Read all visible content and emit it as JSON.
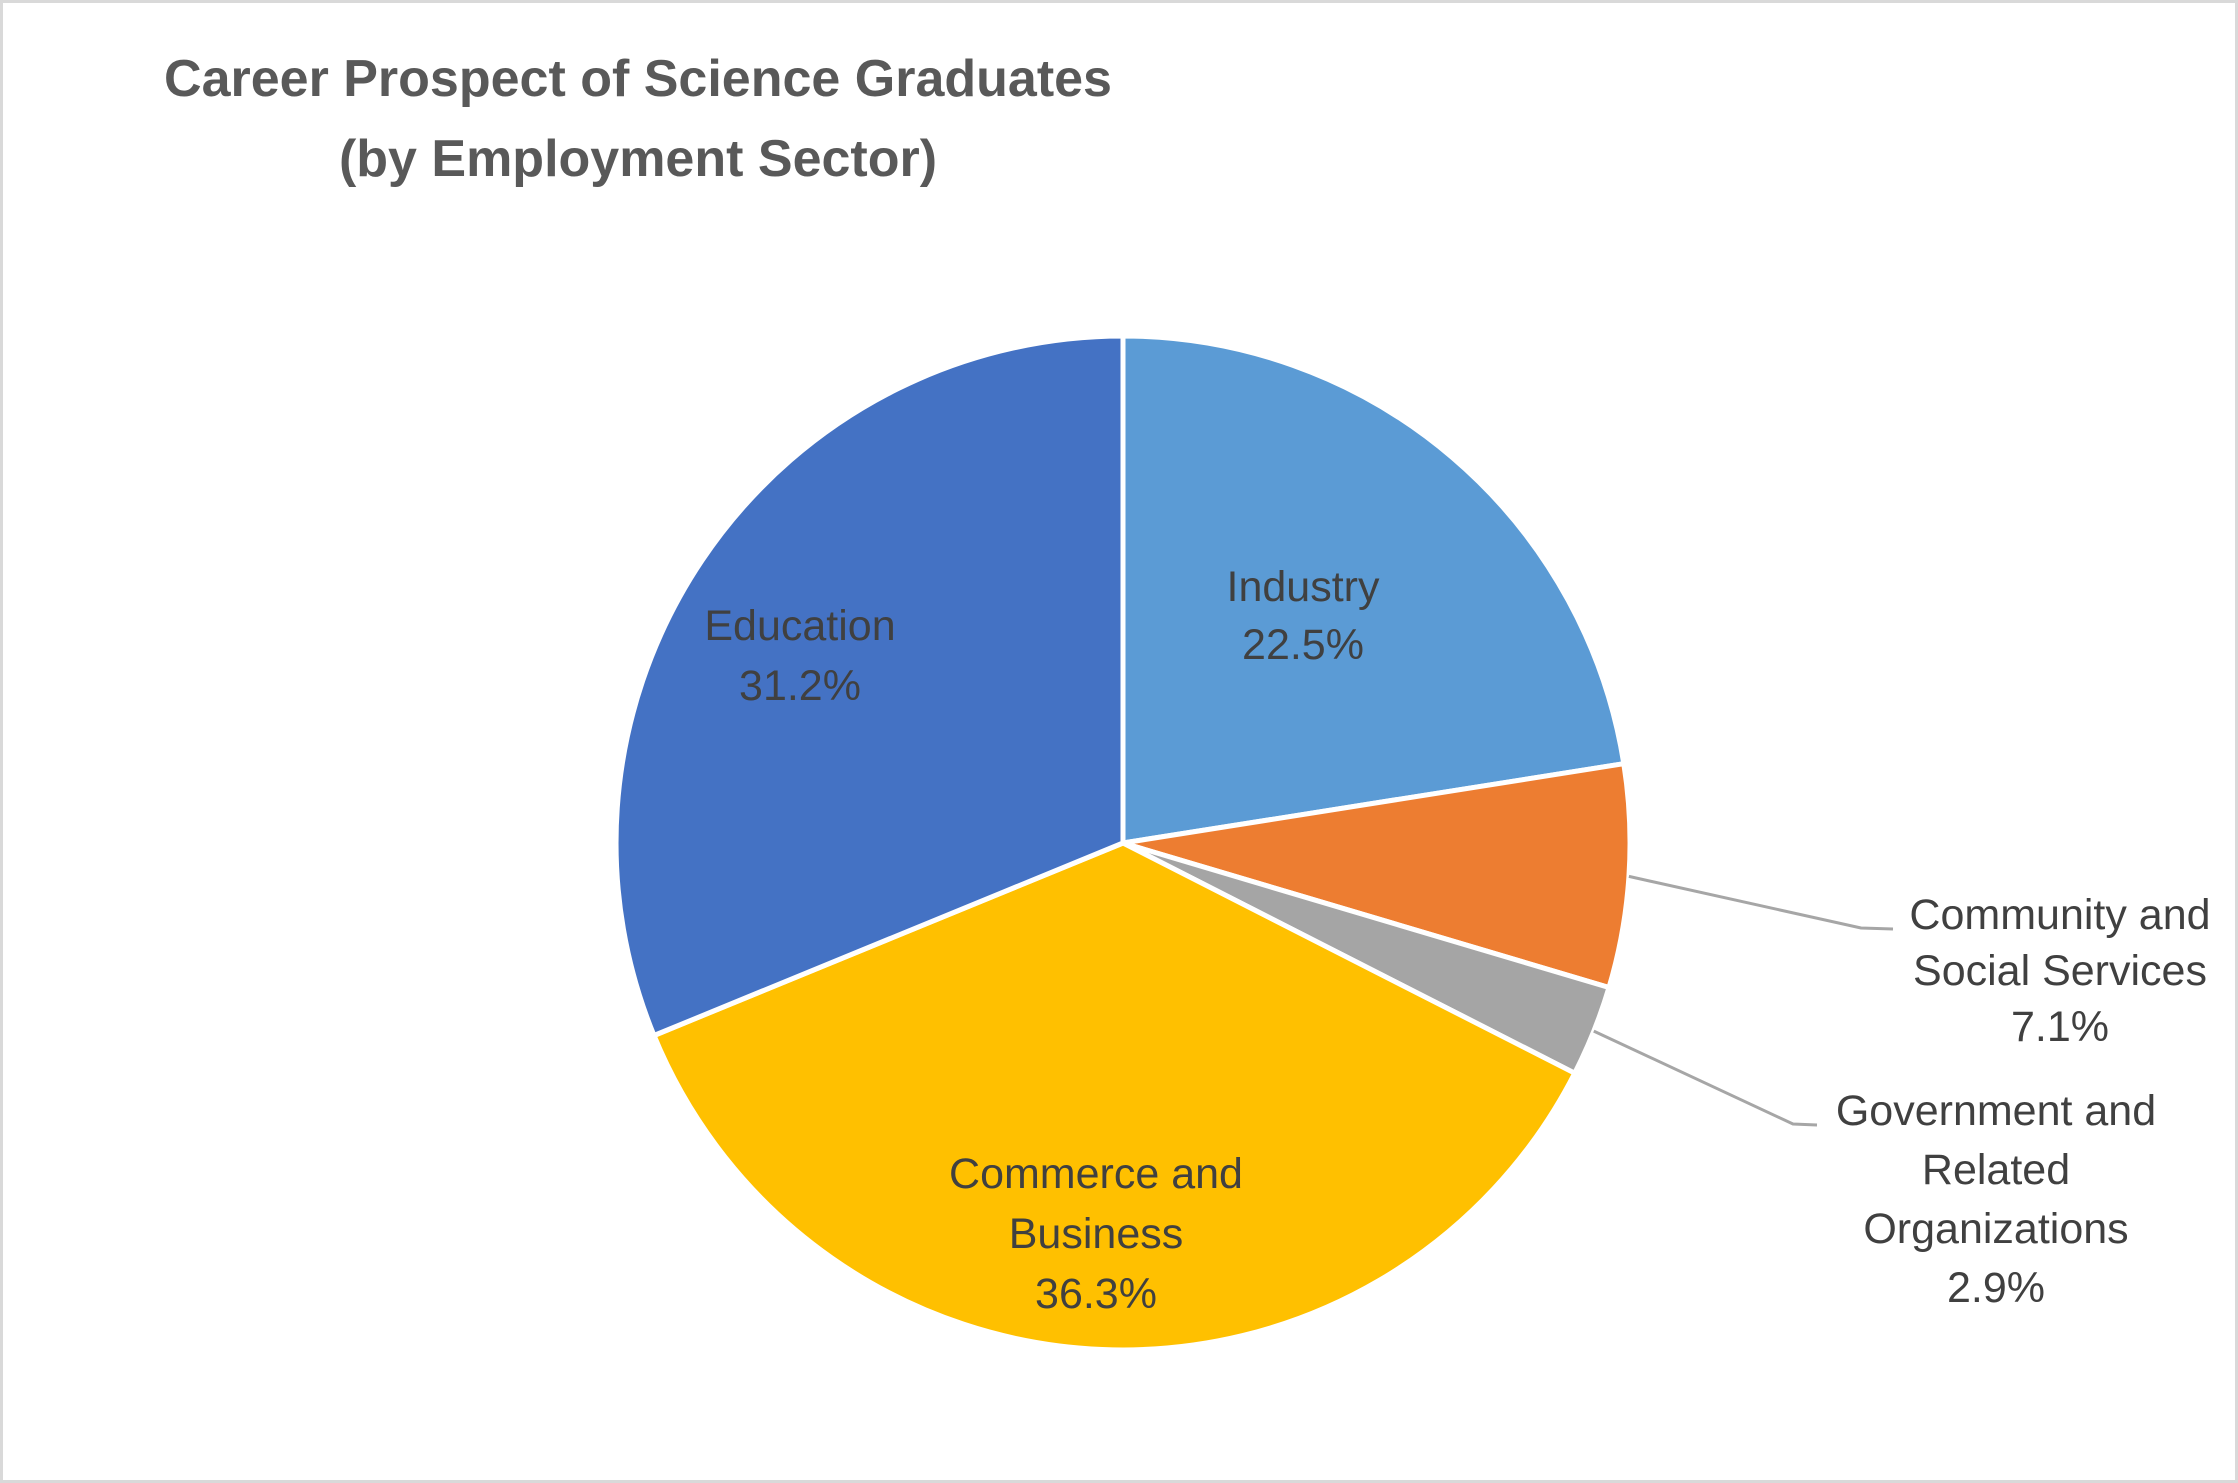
{
  "window": {
    "background": "#FFFFFF",
    "border_color": "#D9D9D9"
  },
  "chart": {
    "title_line1": "Career Prospect of Science Graduates",
    "title_line2": "(by Employment Sector)",
    "title_color": "#595959",
    "label_color": "#404040",
    "leader_line_color": "#A6A6A6",
    "slice_border_color": "#FFFFFF"
  },
  "chart_data": {
    "type": "pie",
    "title": "Career Prospect of Science Graduates (by Employment Sector)",
    "value_unit": "percent",
    "start_angle_deg": 0,
    "direction": "clockwise",
    "legend": "none",
    "categories": [
      "Industry",
      "Community and Social Services",
      "Government and Related Organizations",
      "Commerce and Business",
      "Education"
    ],
    "values": [
      22.5,
      7.1,
      2.9,
      36.3,
      31.2
    ],
    "slices": [
      {
        "id": "industry",
        "label": "Industry",
        "label_lines": [
          "Industry"
        ],
        "value": 22.5,
        "pct_label": "22.5%",
        "color": "#5B9BD5",
        "label_placement": "inside"
      },
      {
        "id": "community-social-services",
        "label": "Community and Social Services",
        "label_lines": [
          "Community and",
          "Social Services"
        ],
        "value": 7.1,
        "pct_label": "7.1%",
        "color": "#ED7D31",
        "label_placement": "outside-leader"
      },
      {
        "id": "government-related-organizations",
        "label": "Government and Related Organizations",
        "label_lines": [
          "Government and",
          "Related",
          "Organizations"
        ],
        "value": 2.9,
        "pct_label": "2.9%",
        "color": "#A5A5A5",
        "label_placement": "outside-leader"
      },
      {
        "id": "commerce-business",
        "label": "Commerce and Business",
        "label_lines": [
          "Commerce and",
          "Business"
        ],
        "value": 36.3,
        "pct_label": "36.3%",
        "color": "#FFC000",
        "label_placement": "inside"
      },
      {
        "id": "education",
        "label": "Education",
        "label_lines": [
          "Education"
        ],
        "value": 31.2,
        "pct_label": "31.2%",
        "color": "#4472C4",
        "label_placement": "inside"
      }
    ]
  }
}
